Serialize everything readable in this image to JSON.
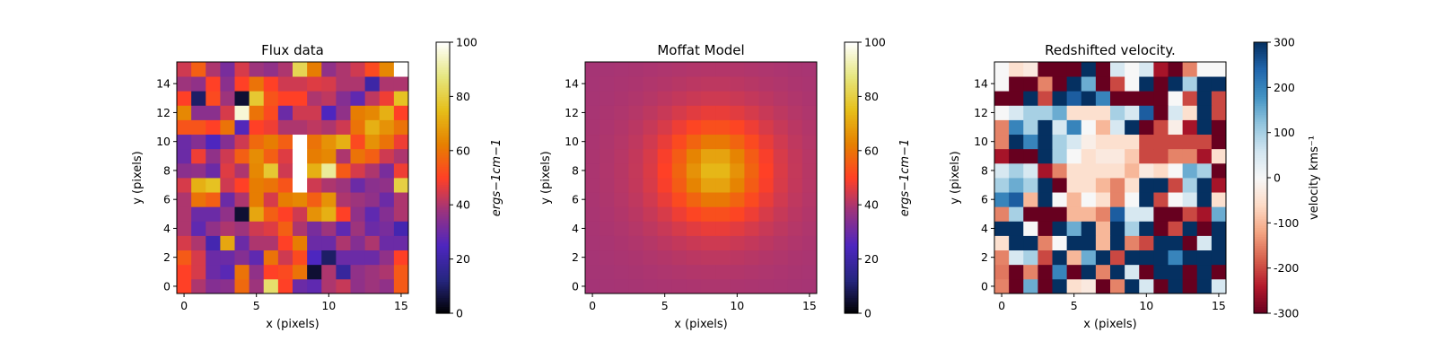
{
  "chart_data": [
    {
      "type": "heatmap",
      "title": "Flux data",
      "xlabel": "x (pixels)",
      "ylabel": "y (pixels)",
      "xlim": [
        -0.5,
        15.5
      ],
      "ylim": [
        -0.5,
        15.5
      ],
      "xticks": [
        0,
        5,
        10,
        15
      ],
      "yticks": [
        0,
        2,
        4,
        6,
        8,
        10,
        12,
        14
      ],
      "colormap": "CMRmap",
      "colorbar": {
        "label": "ergs$^-1 cm^-1$",
        "label_display": "ergs−1cm−1",
        "range": [
          0,
          100
        ],
        "ticks": [
          0,
          20,
          40,
          60,
          80,
          100
        ]
      },
      "values": [
        [
          50,
          40,
          34,
          35,
          58,
          38,
          85,
          50,
          30,
          28,
          40,
          43,
          36,
          38,
          36,
          55
        ],
        [
          50,
          45,
          30,
          27,
          60,
          36,
          50,
          52,
          60,
          5,
          40,
          18,
          36,
          38,
          40,
          55
        ],
        [
          55,
          45,
          30,
          30,
          34,
          28,
          60,
          44,
          52,
          25,
          10,
          30,
          30,
          30,
          36,
          50
        ],
        [
          45,
          40,
          22,
          70,
          30,
          40,
          40,
          50,
          62,
          30,
          30,
          40,
          34,
          40,
          30,
          30
        ],
        [
          40,
          28,
          36,
          40,
          38,
          44,
          46,
          56,
          40,
          32,
          38,
          28,
          38,
          30,
          32,
          22
        ],
        [
          40,
          30,
          30,
          36,
          5,
          70,
          56,
          50,
          44,
          66,
          72,
          50,
          36,
          28,
          34,
          40
        ],
        [
          40,
          60,
          56,
          30,
          40,
          62,
          45,
          62,
          64,
          56,
          66,
          40,
          38,
          36,
          30,
          40
        ],
        [
          45,
          72,
          76,
          44,
          50,
          62,
          60,
          54,
          100,
          44,
          40,
          38,
          30,
          35,
          36,
          80
        ],
        [
          35,
          36,
          30,
          46,
          40,
          64,
          78,
          44,
          100,
          72,
          90,
          55,
          45,
          40,
          32,
          48
        ],
        [
          30,
          48,
          36,
          44,
          56,
          65,
          56,
          46,
          100,
          62,
          64,
          40,
          60,
          56,
          44,
          40
        ],
        [
          30,
          34,
          25,
          34,
          44,
          58,
          62,
          56,
          100,
          60,
          66,
          72,
          52,
          66,
          60,
          48
        ],
        [
          54,
          54,
          50,
          60,
          26,
          50,
          48,
          40,
          40,
          42,
          40,
          44,
          60,
          72,
          66,
          60
        ],
        [
          64,
          35,
          35,
          45,
          96,
          60,
          52,
          30,
          44,
          44,
          25,
          36,
          62,
          64,
          72,
          50
        ],
        [
          50,
          10,
          52,
          38,
          5,
          78,
          54,
          50,
          50,
          40,
          42,
          34,
          28,
          42,
          48,
          76
        ],
        [
          38,
          36,
          50,
          35,
          50,
          60,
          50,
          44,
          44,
          46,
          45,
          40,
          40,
          20,
          40,
          40
        ],
        [
          44,
          56,
          40,
          32,
          45,
          38,
          36,
          40,
          82,
          62,
          36,
          40,
          44,
          52,
          64,
          100
        ]
      ]
    },
    {
      "type": "heatmap",
      "title": "Moffat Model",
      "xlabel": "x (pixels)",
      "ylabel": "y (pixels)",
      "xlim": [
        -0.5,
        15.5
      ],
      "ylim": [
        -0.5,
        15.5
      ],
      "xticks": [
        0,
        5,
        10,
        15
      ],
      "yticks": [
        0,
        2,
        4,
        6,
        8,
        10,
        12,
        14
      ],
      "colormap": "CMRmap",
      "colorbar": {
        "label": "ergs$^-1 cm^-1$",
        "label_display": "ergs−1cm−1",
        "range": [
          0,
          100
        ],
        "ticks": [
          0,
          20,
          40,
          60,
          80,
          100
        ]
      },
      "model": {
        "center": [
          8.5,
          8.0
        ],
        "amplitude": 36,
        "background": 38.5,
        "alpha": 4.0,
        "beta": 2.0
      }
    },
    {
      "type": "heatmap",
      "title": "Redshifted velocity.",
      "xlabel": "x (pixels)",
      "ylabel": "y (pixels)",
      "xlim": [
        -0.5,
        15.5
      ],
      "ylim": [
        -0.5,
        15.5
      ],
      "xticks": [
        0,
        5,
        10,
        15
      ],
      "yticks": [
        0,
        2,
        4,
        6,
        8,
        10,
        12,
        14
      ],
      "colormap": "RdBu",
      "colorbar": {
        "label": "velocity $kms^{-1}$",
        "label_display": "velocity kms⁻¹",
        "range": [
          -300,
          300
        ],
        "ticks": [
          -300,
          -200,
          -100,
          0,
          100,
          200,
          300
        ]
      },
      "values": [
        [
          -150,
          -300,
          150,
          -300,
          300,
          -50,
          -30,
          -300,
          -150,
          300,
          50,
          -300,
          300,
          -300,
          300,
          50
        ],
        [
          -160,
          -300,
          -150,
          -300,
          200,
          -300,
          300,
          -150,
          300,
          50,
          -300,
          300,
          300,
          -300,
          300,
          -300
        ],
        [
          -150,
          50,
          100,
          -200,
          300,
          -100,
          150,
          300,
          -200,
          300,
          300,
          300,
          200,
          300,
          300,
          300
        ],
        [
          -50,
          300,
          300,
          -150,
          0,
          300,
          300,
          -100,
          300,
          -150,
          -200,
          300,
          300,
          -300,
          50,
          300
        ],
        [
          300,
          300,
          0,
          -300,
          300,
          150,
          300,
          -100,
          300,
          100,
          300,
          -300,
          -200,
          300,
          -300,
          300
        ],
        [
          -150,
          100,
          -300,
          -300,
          -300,
          -100,
          -100,
          -150,
          250,
          50,
          50,
          -300,
          -300,
          -200,
          -250,
          150
        ],
        [
          200,
          250,
          -100,
          300,
          0,
          -100,
          0,
          -50,
          -150,
          0,
          300,
          -200,
          0,
          50,
          300,
          -50
        ],
        [
          100,
          150,
          100,
          300,
          -300,
          -50,
          -50,
          -100,
          -150,
          -50,
          300,
          300,
          -200,
          100,
          300,
          -250
        ],
        [
          50,
          100,
          50,
          -250,
          -150,
          -50,
          -50,
          -50,
          -50,
          -100,
          -30,
          -60,
          0,
          150,
          100,
          -300
        ],
        [
          -250,
          -300,
          -300,
          300,
          100,
          0,
          -50,
          -30,
          -30,
          -80,
          -200,
          -200,
          -150,
          -150,
          -250,
          -50
        ],
        [
          -150,
          300,
          200,
          300,
          100,
          50,
          -20,
          -50,
          -50,
          -50,
          -200,
          -200,
          -200,
          -200,
          -200,
          -300
        ],
        [
          -150,
          200,
          100,
          300,
          50,
          200,
          0,
          -100,
          50,
          300,
          -300,
          -200,
          -20,
          -250,
          300,
          -300
        ],
        [
          0,
          50,
          100,
          100,
          150,
          -50,
          -50,
          -50,
          100,
          50,
          250,
          -300,
          50,
          -50,
          300,
          -200
        ],
        [
          -300,
          -300,
          300,
          -200,
          300,
          250,
          300,
          200,
          -300,
          -300,
          -300,
          -300,
          0,
          -200,
          300,
          -200
        ],
        [
          0,
          -300,
          -300,
          -150,
          -300,
          300,
          150,
          -300,
          -200,
          0,
          300,
          -300,
          300,
          100,
          300,
          300
        ],
        [
          0,
          -50,
          -30,
          -300,
          -300,
          -300,
          300,
          -300,
          50,
          0,
          50,
          -250,
          -300,
          -150,
          0,
          0
        ]
      ]
    }
  ]
}
